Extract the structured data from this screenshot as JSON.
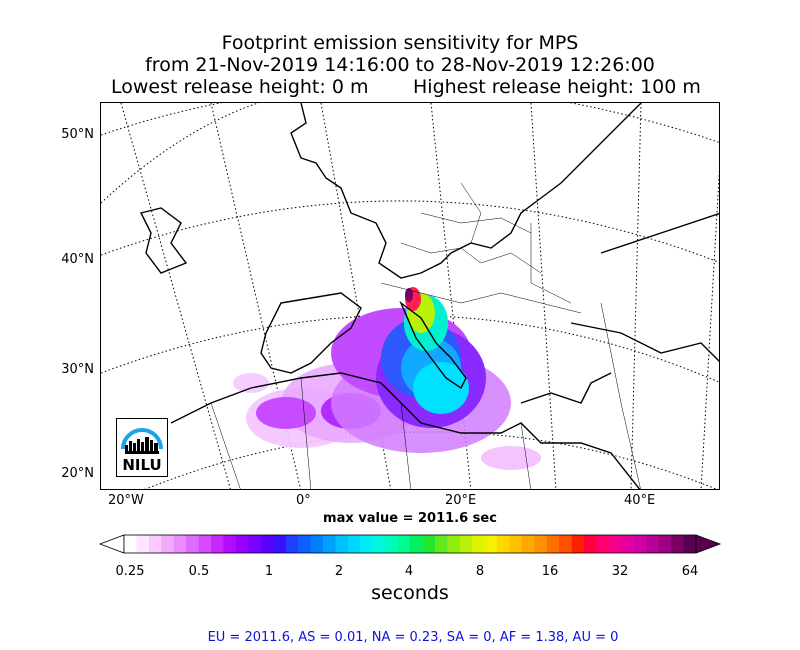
{
  "title": {
    "line1": "Footprint emission sensitivity for MPS",
    "line2": "from 21-Nov-2019 14:16:00 to 28-Nov-2019 12:26:00",
    "line3_left": "Lowest release height: 0 m",
    "line3_right": "Highest release height: 100 m"
  },
  "map": {
    "lat_labels": [
      "50°N",
      "40°N",
      "30°N",
      "20°N"
    ],
    "lon_labels": [
      "20°W",
      "0°",
      "20°E",
      "40°E"
    ],
    "max_value": "max value = 2011.6 sec",
    "logo_text": "NILU",
    "colors": {
      "coast": "#000000",
      "grid": "#000000",
      "logo_arc": "#1aa3e8"
    }
  },
  "colorbar": {
    "ticks": [
      "0.25",
      "0.5",
      "1",
      "2",
      "4",
      "8",
      "16",
      "32",
      "64"
    ],
    "label": "seconds",
    "colors": [
      "#ffffff",
      "#fde6ff",
      "#f9c9ff",
      "#f2abff",
      "#ea8cff",
      "#e06bff",
      "#d44aff",
      "#c628ff",
      "#b40aff",
      "#9a00ff",
      "#7a00ff",
      "#5a00ff",
      "#3a10ff",
      "#2040ff",
      "#1060ff",
      "#0080ff",
      "#00a0ff",
      "#00bfff",
      "#00d8ff",
      "#00ecf2",
      "#00f7d9",
      "#00fab8",
      "#00fa90",
      "#00f060",
      "#20e830",
      "#60e820",
      "#90ee10",
      "#b8f208",
      "#dcf500",
      "#f8f000",
      "#ffd800",
      "#ffc000",
      "#ffa800",
      "#ff9000",
      "#ff7000",
      "#ff5000",
      "#ff2000",
      "#ff0040",
      "#ff0070",
      "#f40090",
      "#e400a0",
      "#d000a8",
      "#b80098",
      "#9a0080",
      "#7a0068",
      "#5a0050"
    ]
  },
  "stats": "EU = 2011.6,  AS = 0.01,  NA = 0.23,  SA = 0,  AF = 1.38,  AU = 0"
}
